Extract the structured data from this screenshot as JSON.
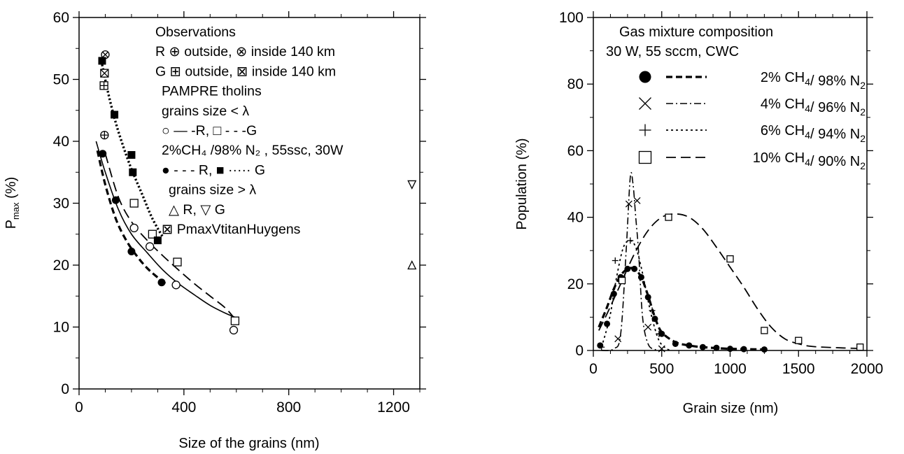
{
  "chart_data": [
    {
      "type": "scatter",
      "xlabel": "Size of the grains (nm)",
      "ylabel": "P",
      "ylabel_sub": "max",
      "ylabel_unit": " (%)",
      "xlim": [
        0,
        1300
      ],
      "ylim": [
        0,
        60
      ],
      "x_ticks": [
        0,
        400,
        800,
        1200
      ],
      "y_ticks": [
        0,
        10,
        20,
        30,
        40,
        50,
        60
      ],
      "grid": false,
      "legend_position": "top-right",
      "legend_lines": [
        "Observations",
        "R  ⊕  outside,  ⊗  inside 140 km",
        "G  ⊞  outside,  ⊠  inside 140 km",
        "PAMPRE tholins",
        "grains size < λ",
        "○  —  -R,  □  - - -G",
        "2%CH₄ /98% N₂ , 55ssc, 30W",
        "●  - - -  R,  ■  ····· G",
        "grains size > λ",
        "△  R,  ▽  G",
        "⊠   PmaxVtitanHuygens"
      ],
      "series": [
        {
          "name": "R",
          "marker": "circle-plus",
          "x": [
            97
          ],
          "y": [
            41
          ]
        },
        {
          "name": "R",
          "marker": "circle-x",
          "x": [
            100
          ],
          "y": [
            54
          ]
        },
        {
          "name": "G",
          "marker": "square-plus",
          "x": [
            95
          ],
          "y": [
            49
          ]
        },
        {
          "name": "G",
          "marker": "square-x",
          "x": [
            97
          ],
          "y": [
            51
          ]
        },
        {
          "name": "R",
          "marker": "circle-open",
          "x": [
            210,
            270,
            370,
            590
          ],
          "y": [
            26,
            23,
            16.8,
            9.5
          ]
        },
        {
          "name": "G",
          "marker": "square-open",
          "x": [
            210,
            280,
            375,
            595
          ],
          "y": [
            30,
            25,
            20.5,
            11
          ]
        },
        {
          "name": "R",
          "marker": "circle-filled",
          "x": [
            90,
            140,
            200,
            315
          ],
          "y": [
            38,
            30.5,
            22.2,
            17.2
          ]
        },
        {
          "name": "G",
          "marker": "square-filled",
          "x": [
            88,
            135,
            200,
            205,
            300
          ],
          "y": [
            53,
            44.3,
            37.8,
            35,
            24
          ]
        },
        {
          "name": "R",
          "marker": "triangle-up",
          "x": [
            1270
          ],
          "y": [
            20
          ]
        },
        {
          "name": "G",
          "marker": "triangle-down",
          "x": [
            1270
          ],
          "y": [
            33
          ]
        }
      ],
      "fit_lines": [
        {
          "style": "solid",
          "x": [
            65,
            100,
            150,
            200,
            260,
            320,
            380,
            440,
            500,
            560,
            600
          ],
          "y": [
            40,
            35,
            29,
            25,
            22,
            19.2,
            17,
            15.2,
            13.5,
            12.2,
            11.5
          ]
        },
        {
          "style": "dashed",
          "x": [
            100,
            150,
            200,
            260,
            320,
            380,
            440,
            500,
            560,
            600
          ],
          "y": [
            38,
            31,
            27,
            24,
            21.5,
            19.2,
            17,
            15,
            13,
            11
          ]
        },
        {
          "style": "dashed-bold",
          "x": [
            70,
            100,
            140,
            180,
            220,
            260,
            300,
            330
          ],
          "y": [
            38.5,
            33,
            27.5,
            24,
            21.5,
            19.5,
            18,
            17
          ]
        },
        {
          "style": "dotted-bold",
          "x": [
            85,
            110,
            140,
            170,
            200,
            240,
            280,
            320
          ],
          "y": [
            53,
            48,
            43,
            39,
            35.5,
            31.5,
            27.5,
            24.5
          ]
        }
      ]
    },
    {
      "type": "line",
      "xlabel": "Grain size (nm)",
      "ylabel": "Population (%)",
      "xlim": [
        0,
        2000
      ],
      "ylim": [
        0,
        100
      ],
      "x_ticks": [
        0,
        500,
        1000,
        1500,
        2000
      ],
      "y_ticks": [
        0,
        20,
        40,
        60,
        80,
        100
      ],
      "grid": false,
      "legend_position": "top-right",
      "legend_title": [
        "Gas mixture composition",
        "30 W, 55 sccm, CWC"
      ],
      "series": [
        {
          "name": "2% CH4/ 98% N2",
          "marker": "circle-filled",
          "line": "dashed-bold",
          "x": [
            50,
            100,
            150,
            200,
            250,
            300,
            350,
            400,
            450,
            500,
            600,
            700,
            800,
            900,
            1000,
            1100,
            1250
          ],
          "y": [
            1.5,
            8,
            17,
            22,
            24.5,
            24.5,
            22,
            16,
            9.5,
            5,
            2,
            1.5,
            1,
            0.8,
            0.5,
            0.4,
            0.3
          ]
        },
        {
          "name": "4% CH4/ 96% N2",
          "marker": "x",
          "line": "dash-dot",
          "x": [
            180,
            260,
            320,
            400,
            500
          ],
          "y": [
            3.5,
            44,
            45,
            7,
            0.5
          ]
        },
        {
          "name": "6% CH4/ 94% N2",
          "marker": "plus",
          "line": "dotted",
          "x": [
            60,
            160,
            270,
            430,
            480
          ],
          "y": [
            1,
            27,
            33,
            12,
            5
          ]
        },
        {
          "name": "10% CH4/ 90% N2",
          "marker": "square-open",
          "line": "dashed",
          "x": [
            210,
            550,
            1000,
            1250,
            1500,
            1950
          ],
          "y": [
            21,
            40,
            27.5,
            6,
            3,
            1
          ]
        }
      ],
      "curves": [
        {
          "style": "dashed-bold",
          "x": [
            40,
            100,
            150,
            200,
            250,
            300,
            350,
            400,
            450,
            500,
            600,
            700,
            800,
            1000,
            1250
          ],
          "y": [
            7,
            13,
            18.5,
            22.5,
            24.5,
            24.5,
            22,
            16.5,
            10,
            5.5,
            2.5,
            1.5,
            1,
            0.5,
            0.3
          ]
        },
        {
          "style": "dash-dot",
          "x": [
            60,
            150,
            200,
            240,
            270,
            290,
            310,
            330,
            360,
            400,
            450,
            500
          ],
          "y": [
            0,
            0.5,
            5,
            30,
            52,
            50,
            40,
            30,
            10,
            2,
            0.3,
            0
          ]
        },
        {
          "style": "dotted",
          "x": [
            60,
            120,
            170,
            220,
            270,
            310,
            350,
            400,
            440,
            480,
            520,
            560
          ],
          "y": [
            1,
            10,
            22,
            31,
            33,
            31,
            25,
            15,
            8,
            3,
            1,
            0
          ]
        },
        {
          "style": "dashed",
          "x": [
            40,
            100,
            200,
            300,
            400,
            500,
            600,
            700,
            800,
            900,
            1000,
            1100,
            1200,
            1300,
            1400,
            1500,
            1600,
            1800,
            1950
          ],
          "y": [
            6,
            11,
            20,
            29,
            36,
            40,
            41,
            40,
            36.5,
            31,
            25,
            19,
            12.5,
            7,
            3.5,
            2,
            1.2,
            0.8,
            0.6
          ]
        }
      ]
    }
  ]
}
